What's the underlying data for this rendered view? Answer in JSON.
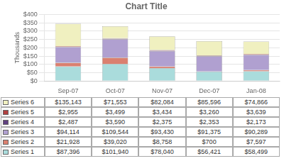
{
  "chart_data": {
    "type": "bar",
    "title": "Chart Title",
    "categories": [
      "Sep-07",
      "Oct-07",
      "Nov-07",
      "Dec-07",
      "Jan-08"
    ],
    "series": [
      {
        "name": "Series 1",
        "color": "#aadcdc",
        "values": [
          87396,
          101940,
          78040,
          56421,
          58499
        ],
        "value_labels": [
          "$87,396",
          "$101,940",
          "$78,040",
          "$56,421",
          "$58,499"
        ]
      },
      {
        "name": "Series 2",
        "color": "#da8070",
        "values": [
          21928,
          39020,
          8758,
          700,
          7597
        ],
        "value_labels": [
          "$21,928",
          "$39,020",
          "$8,758",
          "$700",
          "$7,597"
        ]
      },
      {
        "name": "Series 3",
        "color": "#b0a0d0",
        "values": [
          94114,
          109544,
          93430,
          91375,
          90289
        ],
        "value_labels": [
          "$94,114",
          "$109,544",
          "$93,430",
          "$91,375",
          "$90,289"
        ]
      },
      {
        "name": "Series 4",
        "color": "#604080",
        "values": [
          2487,
          3590,
          2375,
          2353,
          2173
        ],
        "value_labels": [
          "$2,487",
          "$3,590",
          "$2,375",
          "$2,353",
          "$2,173"
        ]
      },
      {
        "name": "Series 5",
        "color": "#b04040",
        "values": [
          2955,
          3499,
          3434,
          3260,
          3639
        ],
        "value_labels": [
          "$2,955",
          "$3,499",
          "$3,434",
          "$3,260",
          "$3,639"
        ]
      },
      {
        "name": "Series 6",
        "color": "#f0f0c0",
        "values": [
          135143,
          71553,
          82084,
          85596,
          74866
        ],
        "value_labels": [
          "$135,143",
          "$71,553",
          "$82,084",
          "$85,596",
          "$74,866"
        ]
      }
    ],
    "ylabel": "Thousands",
    "ylim": [
      0,
      400000
    ],
    "yticks": [
      {
        "value": 0,
        "label": "$0"
      },
      {
        "value": 50000,
        "label": "$50"
      },
      {
        "value": 100000,
        "label": "$100"
      },
      {
        "value": 150000,
        "label": "$150"
      },
      {
        "value": 200000,
        "label": "$200"
      },
      {
        "value": 250000,
        "label": "$250"
      },
      {
        "value": 300000,
        "label": "$300"
      },
      {
        "value": 350000,
        "label": "$350"
      },
      {
        "value": 400000,
        "label": "$400"
      }
    ],
    "stacked": true,
    "grid": true,
    "legend": "bottom"
  }
}
